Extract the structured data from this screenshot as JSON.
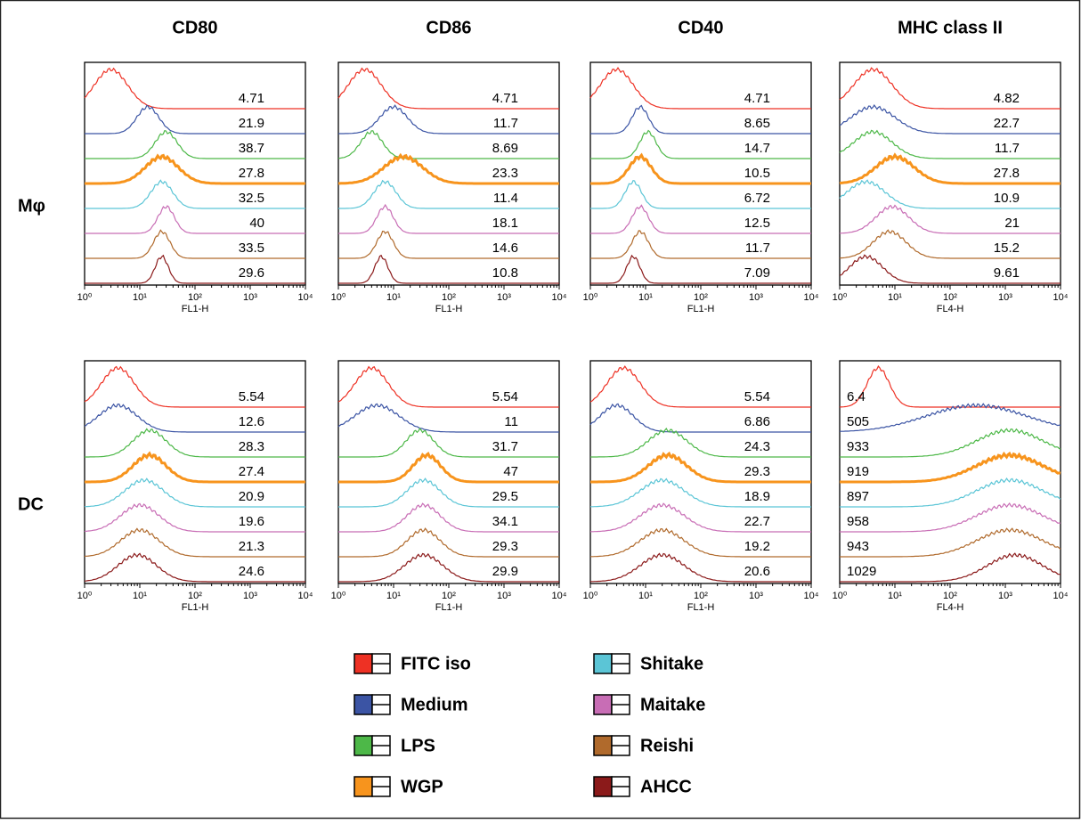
{
  "legend": [
    {
      "name": "FITC iso",
      "color": "#ee3124"
    },
    {
      "name": "Medium",
      "color": "#3b54a4"
    },
    {
      "name": "LPS",
      "color": "#4db848"
    },
    {
      "name": "WGP",
      "color": "#f7941d",
      "line_width": 3
    },
    {
      "name": "Shitake",
      "color": "#5bc5d6"
    },
    {
      "name": "Maitake",
      "color": "#c86db5"
    },
    {
      "name": "Reishi",
      "color": "#b06a2c"
    },
    {
      "name": "AHCC",
      "color": "#8b1a1a"
    }
  ],
  "chart_data": [
    {
      "type": "histogram",
      "title": "CD80",
      "row_label": "Mφ",
      "xlabel": "FL1-H",
      "log_x": true,
      "xlim": [
        1,
        10000
      ],
      "xticks": [
        {
          "value": 1,
          "label": "10⁰"
        },
        {
          "value": 10,
          "label": "10¹"
        },
        {
          "value": 100,
          "label": "10²"
        },
        {
          "value": 1000,
          "label": "10³"
        },
        {
          "value": 10000,
          "label": "10⁴"
        }
      ],
      "values": [
        4.71,
        21.9,
        38.7,
        27.8,
        32.5,
        40,
        33.5,
        29.6
      ],
      "peaks": [
        3,
        14,
        30,
        25,
        25,
        30,
        25,
        25
      ],
      "spreads": [
        0.3,
        0.2,
        0.2,
        0.3,
        0.2,
        0.15,
        0.15,
        0.12
      ]
    },
    {
      "type": "histogram",
      "title": "CD86",
      "xlabel": "FL1-H",
      "log_x": true,
      "xlim": [
        1,
        10000
      ],
      "xticks": [
        {
          "value": 1,
          "label": "10⁰"
        },
        {
          "value": 10,
          "label": "10¹"
        },
        {
          "value": 100,
          "label": "10²"
        },
        {
          "value": 1000,
          "label": "10³"
        },
        {
          "value": 10000,
          "label": "10⁴"
        }
      ],
      "values": [
        4.71,
        11.7,
        8.69,
        23.3,
        11.4,
        18.1,
        14.6,
        10.8
      ],
      "peaks": [
        3,
        10,
        4,
        15,
        7,
        7,
        7,
        6
      ],
      "spreads": [
        0.3,
        0.25,
        0.2,
        0.35,
        0.2,
        0.15,
        0.15,
        0.12
      ]
    },
    {
      "type": "histogram",
      "title": "CD40",
      "xlabel": "FL1-H",
      "log_x": true,
      "xlim": [
        1,
        10000
      ],
      "xticks": [
        {
          "value": 1,
          "label": "10⁰"
        },
        {
          "value": 10,
          "label": "10¹"
        },
        {
          "value": 100,
          "label": "10²"
        },
        {
          "value": 1000,
          "label": "10³"
        },
        {
          "value": 10000,
          "label": "10⁴"
        }
      ],
      "values": [
        4.71,
        8.65,
        14.7,
        10.5,
        6.72,
        12.5,
        11.7,
        7.09
      ],
      "peaks": [
        3,
        8,
        11,
        8,
        6,
        8,
        8,
        6
      ],
      "spreads": [
        0.3,
        0.15,
        0.15,
        0.2,
        0.15,
        0.15,
        0.15,
        0.12
      ]
    },
    {
      "type": "histogram",
      "title": "MHC class II",
      "xlabel": "FL4-H",
      "log_x": true,
      "xlim": [
        1,
        10000
      ],
      "xticks": [
        {
          "value": 1,
          "label": "10⁰"
        },
        {
          "value": 10,
          "label": "10¹"
        },
        {
          "value": 100,
          "label": "10²"
        },
        {
          "value": 1000,
          "label": "10³"
        },
        {
          "value": 10000,
          "label": "10⁴"
        }
      ],
      "values": [
        4.82,
        22.7,
        11.7,
        27.8,
        10.9,
        21,
        15.2,
        9.61
      ],
      "peaks": [
        4,
        4,
        4,
        10,
        3,
        9,
        8,
        3
      ],
      "spreads": [
        0.35,
        0.4,
        0.35,
        0.35,
        0.35,
        0.3,
        0.3,
        0.3
      ]
    },
    {
      "type": "histogram",
      "row_label": "DC",
      "xlabel": "FL1-H",
      "log_x": true,
      "xlim": [
        1,
        10000
      ],
      "xticks": [
        {
          "value": 1,
          "label": "10⁰"
        },
        {
          "value": 10,
          "label": "10¹"
        },
        {
          "value": 100,
          "label": "10²"
        },
        {
          "value": 1000,
          "label": "10³"
        },
        {
          "value": 10000,
          "label": "10⁴"
        }
      ],
      "values": [
        5.54,
        12.6,
        28.3,
        27.4,
        20.9,
        19.6,
        21.3,
        24.6
      ],
      "peaks": [
        4,
        4,
        15,
        15,
        12,
        10,
        10,
        9
      ],
      "spreads": [
        0.3,
        0.35,
        0.3,
        0.3,
        0.35,
        0.35,
        0.35,
        0.35
      ]
    },
    {
      "type": "histogram",
      "xlabel": "FL1-H",
      "log_x": true,
      "xlim": [
        1,
        10000
      ],
      "xticks": [
        {
          "value": 1,
          "label": "10⁰"
        },
        {
          "value": 10,
          "label": "10¹"
        },
        {
          "value": 100,
          "label": "10²"
        },
        {
          "value": 1000,
          "label": "10³"
        },
        {
          "value": 10000,
          "label": "10⁴"
        }
      ],
      "values": [
        5.54,
        11,
        31.7,
        47,
        29.5,
        34.1,
        29.3,
        29.9
      ],
      "peaks": [
        4,
        5,
        30,
        40,
        35,
        35,
        35,
        35
      ],
      "spreads": [
        0.3,
        0.4,
        0.25,
        0.25,
        0.3,
        0.3,
        0.3,
        0.35
      ]
    },
    {
      "type": "histogram",
      "xlabel": "FL1-H",
      "log_x": true,
      "xlim": [
        1,
        10000
      ],
      "xticks": [
        {
          "value": 1,
          "label": "10⁰"
        },
        {
          "value": 10,
          "label": "10¹"
        },
        {
          "value": 100,
          "label": "10²"
        },
        {
          "value": 1000,
          "label": "10³"
        },
        {
          "value": 10000,
          "label": "10⁴"
        }
      ],
      "values": [
        5.54,
        6.86,
        24.3,
        29.3,
        18.9,
        22.7,
        19.2,
        20.6
      ],
      "peaks": [
        4,
        3,
        25,
        25,
        20,
        20,
        20,
        20
      ],
      "spreads": [
        0.3,
        0.3,
        0.35,
        0.35,
        0.4,
        0.4,
        0.4,
        0.4
      ]
    },
    {
      "type": "histogram",
      "xlabel": "FL4-H",
      "log_x": true,
      "xlim": [
        1,
        10000
      ],
      "label_side": "left",
      "xticks": [
        {
          "value": 1,
          "label": "10⁰"
        },
        {
          "value": 10,
          "label": "10¹"
        },
        {
          "value": 100,
          "label": "10²"
        },
        {
          "value": 1000,
          "label": "10³"
        },
        {
          "value": 10000,
          "label": "10⁴"
        }
      ],
      "values": [
        6.4,
        505,
        933,
        919,
        897,
        958,
        943,
        1029
      ],
      "peaks": [
        5,
        300,
        1200,
        1200,
        1200,
        1200,
        1200,
        1500
      ],
      "spreads": [
        0.2,
        0.9,
        0.6,
        0.6,
        0.6,
        0.6,
        0.6,
        0.5
      ]
    }
  ]
}
